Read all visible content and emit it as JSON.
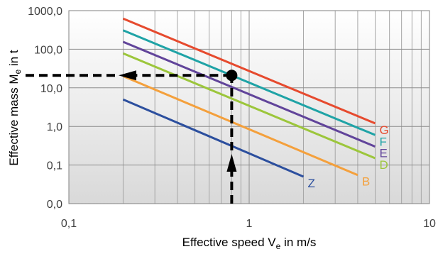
{
  "chart_data": {
    "type": "line",
    "xlabel": {
      "main": "Effective speed V",
      "sub": "e",
      "tail": " in m/s"
    },
    "ylabel": {
      "main": "Effective mass M",
      "sub": "e",
      "tail": "  in t"
    },
    "x_scale": "log",
    "y_scale": "log",
    "xlim": [
      0.1,
      10
    ],
    "ylim": [
      0.01,
      1000
    ],
    "grid": true,
    "x_ticks": [
      {
        "value": 0.1,
        "label": "0,1"
      },
      {
        "value": 1,
        "label": "1"
      },
      {
        "value": 10,
        "label": "10"
      }
    ],
    "y_ticks": [
      {
        "value": 0.01,
        "label": "0,0"
      },
      {
        "value": 0.1,
        "label": "0,1"
      },
      {
        "value": 1,
        "label": "1,0"
      },
      {
        "value": 10,
        "label": "10,0"
      },
      {
        "value": 100,
        "label": "100,0"
      },
      {
        "value": 1000,
        "label": "1000,0"
      }
    ],
    "series": [
      {
        "name": "G",
        "color": "#e64a2e",
        "x": [
          0.2,
          5
        ],
        "y": [
          620,
          1.2
        ]
      },
      {
        "name": "F",
        "color": "#1fa3a6",
        "x": [
          0.2,
          5
        ],
        "y": [
          310,
          0.6
        ]
      },
      {
        "name": "E",
        "color": "#61449a",
        "x": [
          0.2,
          5
        ],
        "y": [
          155,
          0.3
        ]
      },
      {
        "name": "D",
        "color": "#9cc63b",
        "x": [
          0.2,
          5
        ],
        "y": [
          78,
          0.15
        ]
      },
      {
        "name": "B",
        "color": "#f4a03c",
        "x": [
          0.2,
          4
        ],
        "y": [
          20,
          0.055
        ]
      },
      {
        "name": "Z",
        "color": "#2c4f9e",
        "x": [
          0.2,
          2
        ],
        "y": [
          5,
          0.05
        ]
      }
    ],
    "annotation": {
      "point": {
        "x": 0.8,
        "y": 21
      },
      "arrow_up_from_y": 0.01,
      "arrow_left_to_x": 0.1
    }
  }
}
